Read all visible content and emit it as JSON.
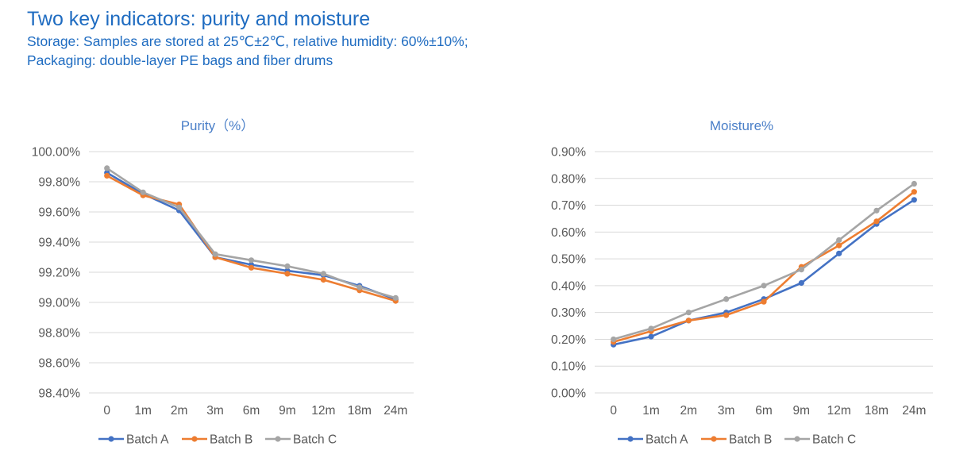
{
  "header": {
    "title": "Two key indicators: purity and moisture",
    "line1": "Storage: Samples are stored at 25℃±2℃, relative humidity: 60%±10%;",
    "line2": "Packaging: double-layer PE bags and fiber drums"
  },
  "colors": {
    "header_text": "#1f6cc1",
    "chart_title": "#4a7fc8",
    "grid": "#d9d9d9",
    "tick_text": "#595959",
    "Batch A": "#4472c4",
    "Batch B": "#ed7d31",
    "Batch C": "#a5a5a5"
  },
  "chart_data": [
    {
      "type": "line",
      "title": "Purity（%）",
      "xlabel": "",
      "ylabel": "",
      "categories": [
        "0",
        "1m",
        "2m",
        "3m",
        "6m",
        "9m",
        "12m",
        "18m",
        "24m"
      ],
      "ylim": [
        98.4,
        100.0
      ],
      "ytick_step": 0.2,
      "ytick_labels": [
        "98.40%",
        "98.60%",
        "98.80%",
        "99.00%",
        "99.20%",
        "99.40%",
        "99.60%",
        "99.80%",
        "100.00%"
      ],
      "grid": true,
      "legend": "bottom",
      "series": [
        {
          "name": "Batch A",
          "values": [
            99.86,
            99.72,
            99.61,
            99.3,
            99.25,
            99.21,
            99.18,
            99.11,
            99.02
          ]
        },
        {
          "name": "Batch B",
          "values": [
            99.84,
            99.71,
            99.65,
            99.3,
            99.23,
            99.19,
            99.15,
            99.08,
            99.01
          ]
        },
        {
          "name": "Batch C",
          "values": [
            99.89,
            99.73,
            99.63,
            99.32,
            99.28,
            99.24,
            99.19,
            99.1,
            99.03
          ]
        }
      ]
    },
    {
      "type": "line",
      "title": "Moisture%",
      "xlabel": "",
      "ylabel": "",
      "categories": [
        "0",
        "1m",
        "2m",
        "3m",
        "6m",
        "9m",
        "12m",
        "18m",
        "24m"
      ],
      "ylim": [
        0.0,
        0.9
      ],
      "ytick_step": 0.1,
      "ytick_labels": [
        "0.00%",
        "0.10%",
        "0.20%",
        "0.30%",
        "0.40%",
        "0.50%",
        "0.60%",
        "0.70%",
        "0.80%",
        "0.90%"
      ],
      "grid": true,
      "legend": "bottom",
      "series": [
        {
          "name": "Batch A",
          "values": [
            0.18,
            0.21,
            0.27,
            0.3,
            0.35,
            0.41,
            0.52,
            0.63,
            0.72
          ]
        },
        {
          "name": "Batch B",
          "values": [
            0.19,
            0.23,
            0.27,
            0.29,
            0.34,
            0.47,
            0.55,
            0.64,
            0.75
          ]
        },
        {
          "name": "Batch C",
          "values": [
            0.2,
            0.24,
            0.3,
            0.35,
            0.4,
            0.46,
            0.57,
            0.68,
            0.78
          ]
        }
      ]
    }
  ]
}
